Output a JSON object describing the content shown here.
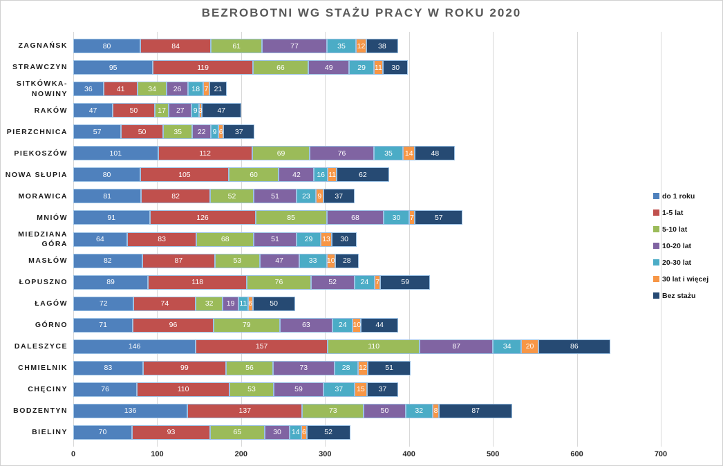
{
  "chart_data": {
    "type": "bar",
    "orientation": "horizontal-stacked",
    "title": "BEZROBOTNI WG STAŻU PRACY W ROKU 2020",
    "xlabel": "",
    "ylabel": "",
    "xlim": [
      0,
      700
    ],
    "x_ticks": [
      0,
      100,
      200,
      300,
      400,
      500,
      600,
      700
    ],
    "grid": true,
    "legend_position": "right",
    "value_labels": "white, centered inside segments",
    "categories": [
      "ZAGNAŃSK",
      "STRAWCZYN",
      "SITKÓWKA-NOWINY",
      "RAKÓW",
      "PIERZCHNICA",
      "PIEKOSZÓW",
      "NOWA SŁUPIA",
      "MORAWICA",
      "MNIÓW",
      "MIEDZIANA GÓRA",
      "MASŁÓW",
      "ŁOPUSZNO",
      "ŁAGÓW",
      "GÓRNO",
      "DALESZYCE",
      "CHMIELNIK",
      "CHĘCINY",
      "BODZENTYN",
      "BIELINY"
    ],
    "series": [
      {
        "name": "do 1 roku",
        "color": "#4F81BD",
        "values": [
          80,
          95,
          36,
          47,
          57,
          101,
          80,
          81,
          91,
          64,
          82,
          89,
          72,
          71,
          146,
          83,
          76,
          136,
          70
        ]
      },
      {
        "name": "1-5 lat",
        "color": "#C0504D",
        "values": [
          84,
          119,
          41,
          50,
          50,
          112,
          105,
          82,
          126,
          83,
          87,
          118,
          74,
          96,
          157,
          99,
          110,
          137,
          93
        ]
      },
      {
        "name": "5-10 lat",
        "color": "#9BBB59",
        "values": [
          61,
          66,
          34,
          17,
          35,
          69,
          60,
          52,
          85,
          68,
          53,
          76,
          32,
          79,
          110,
          56,
          53,
          73,
          65
        ]
      },
      {
        "name": "10-20 lat",
        "color": "#8064A2",
        "values": [
          77,
          49,
          26,
          27,
          22,
          76,
          42,
          51,
          68,
          51,
          47,
          52,
          19,
          63,
          87,
          73,
          59,
          50,
          30
        ]
      },
      {
        "name": "20-30 lat",
        "color": "#4BACC6",
        "values": [
          35,
          29,
          18,
          9,
          9,
          35,
          16,
          23,
          30,
          29,
          33,
          24,
          11,
          24,
          34,
          28,
          37,
          32,
          14
        ]
      },
      {
        "name": "30 lat i więcej",
        "color": "#F79646",
        "values": [
          12,
          11,
          7,
          3,
          6,
          14,
          11,
          9,
          7,
          13,
          10,
          7,
          6,
          10,
          20,
          12,
          15,
          8,
          6
        ]
      },
      {
        "name": "Bez stażu",
        "color": "#264A73",
        "values": [
          38,
          30,
          21,
          47,
          37,
          48,
          62,
          37,
          57,
          30,
          28,
          59,
          50,
          44,
          86,
          51,
          37,
          87,
          52
        ]
      }
    ]
  }
}
